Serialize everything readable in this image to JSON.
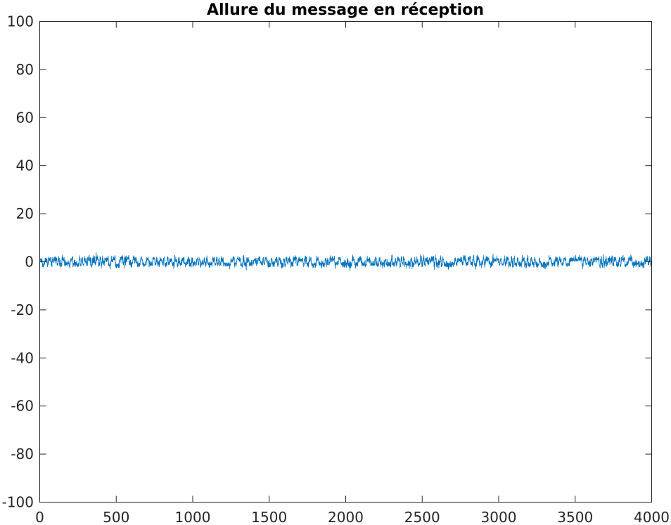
{
  "chart_data": {
    "type": "line",
    "title": "Allure du message en réception",
    "xlabel": "",
    "ylabel": "",
    "xlim": [
      0,
      4000
    ],
    "ylim": [
      -100,
      100
    ],
    "xticks": [
      0,
      500,
      1000,
      1500,
      2000,
      2500,
      3000,
      3500,
      4000
    ],
    "xtick_labels": [
      "0",
      "500",
      "1000",
      "1500",
      "2000",
      "2500",
      "3000",
      "3500",
      "4000"
    ],
    "yticks": [
      100,
      80,
      60,
      40,
      20,
      0,
      -20,
      -40,
      -60,
      -80,
      -100
    ],
    "ytick_labels": [
      "100",
      "80",
      "60",
      "40",
      "20",
      "0",
      "-20",
      "-40",
      "-60",
      "-80",
      "-100"
    ],
    "grid": false,
    "series": [
      {
        "color": "#0072bd",
        "description": "noisy binary signal, 4000 samples, amplitude ±1 with Gaussian noise",
        "n_samples": 4000,
        "level_high": 1,
        "level_low": -1,
        "value_range": [
          -3.8,
          4.3
        ]
      }
    ]
  }
}
